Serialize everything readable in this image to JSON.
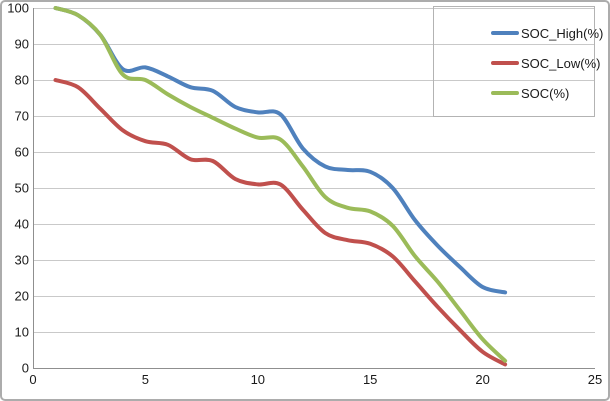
{
  "chart_data": {
    "type": "line",
    "smoothed": true,
    "title": "",
    "xlabel": "",
    "ylabel": "",
    "x": [
      1,
      2,
      3,
      4,
      5,
      6,
      7,
      8,
      9,
      10,
      11,
      12,
      13,
      14,
      15,
      16,
      17,
      18,
      19,
      20,
      21
    ],
    "series": [
      {
        "name": "SOC_High(%)",
        "color": "#4F81BD",
        "values": [
          100,
          98,
          92.5,
          83,
          83.5,
          81,
          78,
          77,
          72.5,
          71,
          70.5,
          61,
          56,
          55,
          54.5,
          50,
          41,
          34,
          28,
          22.5,
          21
        ]
      },
      {
        "name": "SOC_Low(%)",
        "color": "#C0504D",
        "values": [
          80,
          78,
          72,
          66,
          63,
          62,
          58,
          57.5,
          52.5,
          51,
          51,
          44,
          37.5,
          35.5,
          34.5,
          31,
          24,
          17,
          10.5,
          4.5,
          1
        ]
      },
      {
        "name": "SOC(%)",
        "color": "#9BBB59",
        "values": [
          100,
          98,
          92.5,
          81.5,
          80,
          76,
          72.5,
          69.5,
          66.5,
          64,
          63.5,
          56,
          47.5,
          44.5,
          43.5,
          39.5,
          31,
          24,
          16,
          8,
          2
        ]
      }
    ],
    "xlim": [
      0,
      25
    ],
    "ylim": [
      0,
      100
    ],
    "xticks": [
      0,
      5,
      10,
      15,
      20,
      25
    ],
    "yticks": [
      0,
      10,
      20,
      30,
      40,
      50,
      60,
      70,
      80,
      90,
      100
    ],
    "grid": "horizontal",
    "legend_position": "top-right",
    "draw_order_note": "blue drawn first, then red, green on top"
  },
  "colors": {
    "background": "#FFFFFF",
    "gridline": "#C9C9C9",
    "axis": "#8F8F8F",
    "text": "#1A1A1A",
    "legend_border": "#B3B3B3",
    "chart_border": "#ACACAC"
  }
}
